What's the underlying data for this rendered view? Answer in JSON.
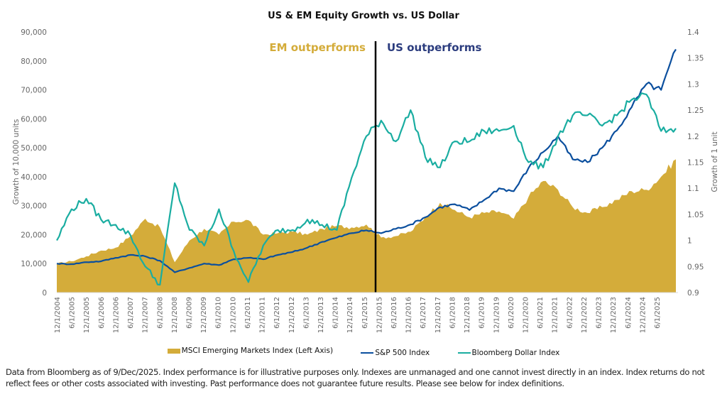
{
  "chart_data": {
    "type": "line",
    "title": "US & EM Equity Growth vs. US Dollar",
    "ylabel_left": "Growth of 10,000 units",
    "ylabel_right": "Growth of 1 unit",
    "ylim_left": [
      0,
      90000
    ],
    "ylim_right": [
      0.9,
      1.4
    ],
    "yticks_left": [
      "0",
      "10,000",
      "20,000",
      "30,000",
      "40,000",
      "50,000",
      "60,000",
      "70,000",
      "80,000",
      "90,000"
    ],
    "yticks_right": [
      "0.9",
      "0.95",
      "1",
      "1.05",
      "1.1",
      "1.15",
      "1.2",
      "1.25",
      "1.3",
      "1.35",
      "1.4"
    ],
    "x_start": "12/1/2004",
    "x_end": "12/1/2025",
    "x_frequency": "semiannual-ticks / monthly data",
    "xticks": [
      "12/1/2004",
      "6/1/2005",
      "12/1/2005",
      "6/1/2006",
      "12/1/2006",
      "6/1/2007",
      "12/1/2007",
      "6/1/2008",
      "12/1/2008",
      "6/1/2009",
      "12/1/2009",
      "6/1/2010",
      "12/1/2010",
      "6/1/2011",
      "12/1/2011",
      "6/1/2012",
      "12/1/2012",
      "6/1/2013",
      "12/1/2013",
      "6/1/2014",
      "12/1/2014",
      "6/1/2015",
      "12/1/2015",
      "6/1/2016",
      "12/1/2016",
      "6/1/2017",
      "12/1/2017",
      "6/1/2018",
      "12/1/2018",
      "6/1/2019",
      "12/1/2019",
      "6/1/2020",
      "12/1/2020",
      "6/1/2021",
      "12/1/2021",
      "6/1/2022",
      "12/1/2022",
      "6/1/2023",
      "12/1/2023",
      "6/1/2024",
      "12/1/2024",
      "6/1/2025"
    ],
    "grid": false,
    "legend_position": "bottom",
    "annotations": [
      {
        "text": "EM outperforms",
        "color": "#D4AC3A"
      },
      {
        "text": "US outperforms",
        "color": "#2B3C7E"
      }
    ],
    "divider_date": "7/1/2015",
    "series": [
      {
        "name": "MSCI Emerging Markets Index (Left Axis)",
        "kind": "area",
        "axis": "left",
        "color": "#D4AC3A",
        "dates_semiannual": [
          "12/2004",
          "6/2005",
          "12/2005",
          "6/2006",
          "12/2006",
          "6/2007",
          "12/2007",
          "6/2008",
          "12/2008",
          "6/2009",
          "12/2009",
          "6/2010",
          "12/2010",
          "6/2011",
          "12/2011",
          "6/2012",
          "12/2012",
          "6/2013",
          "12/2013",
          "6/2014",
          "12/2014",
          "6/2015",
          "12/2015",
          "6/2016",
          "12/2016",
          "6/2017",
          "12/2017",
          "6/2018",
          "12/2018",
          "6/2019",
          "12/2019",
          "6/2020",
          "12/2020",
          "6/2021",
          "12/2021",
          "6/2022",
          "12/2022",
          "6/2023",
          "12/2023",
          "6/2024",
          "12/2024",
          "6/2025",
          "12/2025"
        ],
        "values": [
          10000,
          10800,
          12500,
          14500,
          15500,
          19500,
          25500,
          22500,
          10500,
          18000,
          22000,
          20000,
          24500,
          25000,
          20000,
          20500,
          21000,
          20000,
          22000,
          23000,
          22500,
          23500,
          19000,
          19500,
          21000,
          26000,
          31000,
          28500,
          26000,
          27500,
          28000,
          25500,
          33000,
          38500,
          35500,
          29500,
          27500,
          29500,
          32000,
          35000,
          35500,
          40000,
          46000
        ]
      },
      {
        "name": "S&P 500 Index",
        "kind": "line",
        "axis": "left",
        "color": "#0B4F9E",
        "dates_semiannual": [
          "12/2004",
          "6/2005",
          "12/2005",
          "6/2006",
          "12/2006",
          "6/2007",
          "12/2007",
          "6/2008",
          "12/2008",
          "6/2009",
          "12/2009",
          "6/2010",
          "12/2010",
          "6/2011",
          "12/2011",
          "6/2012",
          "12/2012",
          "6/2013",
          "12/2013",
          "6/2014",
          "12/2014",
          "6/2015",
          "12/2015",
          "6/2016",
          "12/2016",
          "6/2017",
          "12/2017",
          "6/2018",
          "12/2018",
          "6/2019",
          "12/2019",
          "6/2020",
          "12/2020",
          "6/2021",
          "12/2021",
          "6/2022",
          "12/2022",
          "6/2023",
          "12/2023",
          "6/2024",
          "12/2024",
          "6/2025",
          "12/2025"
        ],
        "values": [
          10000,
          9800,
          10500,
          10800,
          12000,
          13000,
          12500,
          11000,
          7000,
          8500,
          10000,
          9500,
          11500,
          12000,
          11500,
          13000,
          14000,
          15500,
          17500,
          19000,
          20500,
          21500,
          20500,
          22000,
          23500,
          26000,
          29500,
          30500,
          28500,
          32000,
          36000,
          35000,
          43000,
          48500,
          54000,
          46000,
          45000,
          50000,
          56000,
          64000,
          72000,
          70000,
          84000
        ]
      },
      {
        "name": "Bloomberg Dollar Index",
        "kind": "line",
        "axis": "right",
        "color": "#1AADA1",
        "dates_semiannual": [
          "12/2004",
          "6/2005",
          "12/2005",
          "6/2006",
          "12/2006",
          "6/2007",
          "12/2007",
          "6/2008",
          "12/2008",
          "6/2009",
          "12/2009",
          "6/2010",
          "12/2010",
          "6/2011",
          "12/2011",
          "6/2012",
          "12/2012",
          "6/2013",
          "12/2013",
          "6/2014",
          "12/2014",
          "6/2015",
          "12/2015",
          "6/2016",
          "12/2016",
          "6/2017",
          "12/2017",
          "6/2018",
          "12/2018",
          "6/2019",
          "12/2019",
          "6/2020",
          "12/2020",
          "6/2021",
          "12/2021",
          "6/2022",
          "12/2022",
          "6/2023",
          "12/2023",
          "6/2024",
          "12/2024",
          "6/2025",
          "12/2025"
        ],
        "values": [
          1.0,
          1.06,
          1.08,
          1.04,
          1.03,
          1.01,
          0.95,
          0.915,
          1.11,
          1.02,
          0.99,
          1.06,
          0.98,
          0.92,
          0.99,
          1.02,
          1.02,
          1.04,
          1.03,
          1.02,
          1.12,
          1.2,
          1.23,
          1.19,
          1.25,
          1.16,
          1.14,
          1.19,
          1.19,
          1.21,
          1.21,
          1.22,
          1.15,
          1.14,
          1.2,
          1.24,
          1.24,
          1.22,
          1.24,
          1.27,
          1.28,
          1.21,
          1.215
        ]
      }
    ]
  },
  "legend": {
    "items": [
      {
        "label": "MSCI Emerging Markets Index (Left Axis)",
        "color": "#D4AC3A"
      },
      {
        "label": "S&P 500 Index",
        "color": "#0B4F9E"
      },
      {
        "label": "Bloomberg Dollar Index",
        "color": "#1AADA1"
      }
    ]
  },
  "footnote": "Data from Bloomberg as of 9/Dec/2025. Index performance is for illustrative purposes only. Indexes are unmanaged and one cannot invest directly in an index. Index returns do not reflect fees or other costs associated with investing. Past performance does not guarantee future results. Please see below for index definitions."
}
